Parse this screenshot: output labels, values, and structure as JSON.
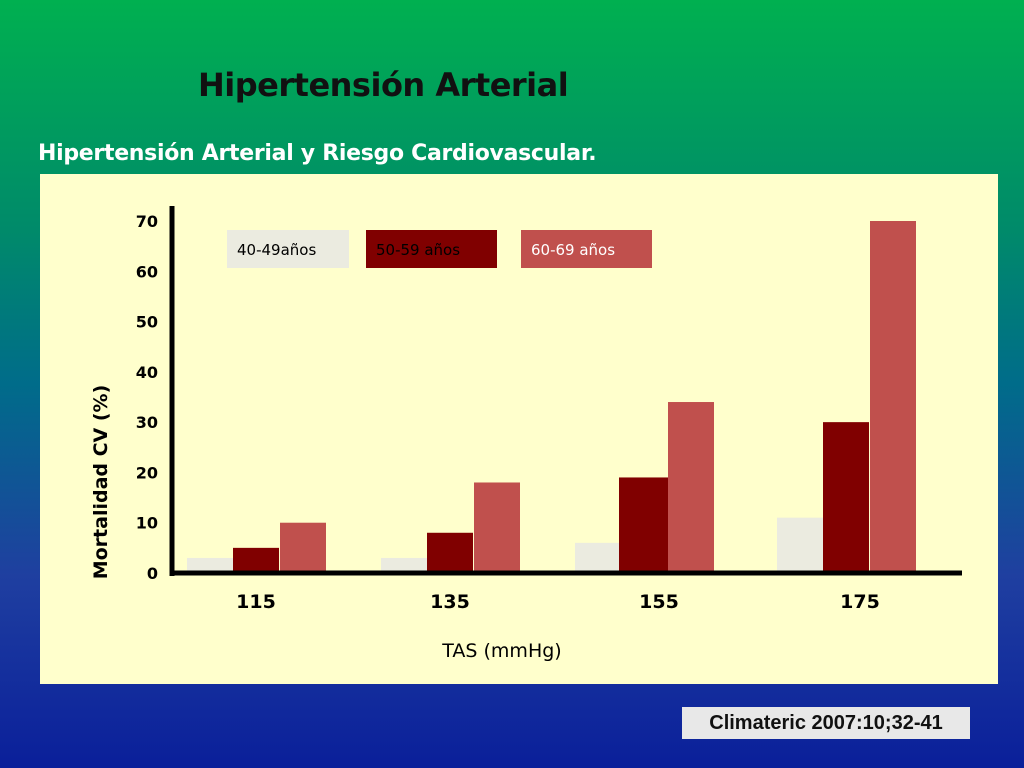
{
  "slide": {
    "title": "Hipertensión Arterial",
    "subtitle": "Hipertensión Arterial y Riesgo Cardiovascular.",
    "citation": "Climateric 2007:10;32-41"
  },
  "chart_data": {
    "type": "bar",
    "categories": [
      "115",
      "135",
      "155",
      "175"
    ],
    "series": [
      {
        "name": "40-49años",
        "values": [
          3,
          3,
          6,
          11
        ],
        "color": "#ebebe0",
        "legend_text_color": "#000000"
      },
      {
        "name": "50-59 años",
        "values": [
          5,
          8,
          19,
          30
        ],
        "color": "#800000",
        "legend_text_color": "#000000"
      },
      {
        "name": "60-69 años",
        "values": [
          10,
          18,
          34,
          70
        ],
        "color": "#c0504d",
        "legend_text_color": "#ffffff"
      }
    ],
    "xlabel": "TAS (mmHg)",
    "ylabel": "Mortalidad CV (%)",
    "yticks": [
      "0",
      "10",
      "20",
      "30",
      "40",
      "50",
      "60",
      "70"
    ],
    "ylim": [
      0,
      70
    ],
    "grid": false,
    "legend_position": "top"
  }
}
